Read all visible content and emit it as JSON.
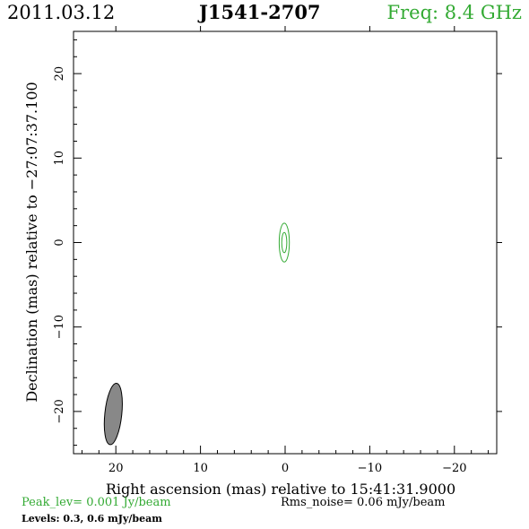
{
  "header": {
    "date": "2011.03.12",
    "source": "J1541-2707",
    "freq": "Freq: 8.4 GHz"
  },
  "footer": {
    "peak": "Peak_lev=  0.001 Jy/beam",
    "rms": "Rms_noise= 0.06 mJy/beam",
    "levels": "Levels: 0.3, 0.6 mJy/beam"
  },
  "colors": {
    "frame": "#000000",
    "contour": "#33aa33",
    "beam_fill": "#888888",
    "freq_text": "#33aa33"
  },
  "chart_data": {
    "type": "contour",
    "xlabel": "Right ascension (mas) relative to 15:41:31.9000",
    "ylabel": "Declination (mas) relative to −27:07:37.100",
    "xlim": [
      25,
      -25
    ],
    "ylim": [
      -25,
      25
    ],
    "x_ticks": [
      20,
      10,
      0,
      -10,
      -20
    ],
    "x_tick_labels": [
      "20",
      "10",
      "0",
      "−10",
      "−20"
    ],
    "y_ticks": [
      20,
      10,
      0,
      -10,
      -20
    ],
    "y_tick_labels": [
      "20",
      "10",
      "0",
      "−10",
      "−20"
    ],
    "x_minor_step": 2,
    "y_minor_step": 2,
    "contour_levels_mJy": [
      0.3,
      0.6
    ],
    "contours": [
      {
        "level": 0.3,
        "center": [
          0.1,
          0.0
        ],
        "major_mas": 4.6,
        "minor_mas": 1.2,
        "pa_deg": 0
      },
      {
        "level": 0.6,
        "center": [
          0.1,
          0.0
        ],
        "major_mas": 2.4,
        "minor_mas": 0.6,
        "pa_deg": 0
      }
    ],
    "beam": {
      "center": [
        20.3,
        -20.3
      ],
      "major_mas": 7.3,
      "minor_mas": 2.0,
      "pa_deg": -6
    }
  }
}
